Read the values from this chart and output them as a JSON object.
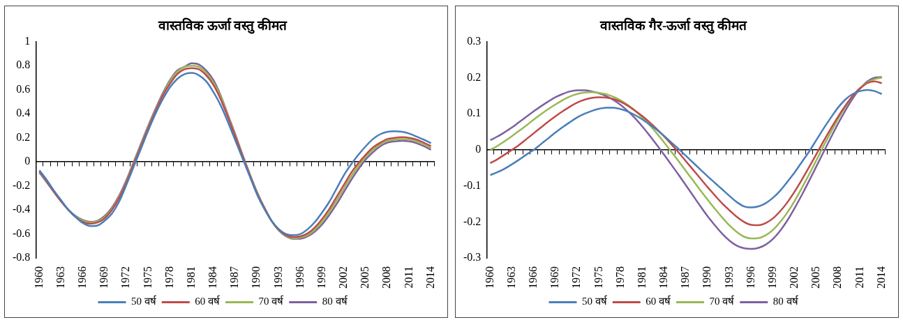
{
  "chart_data": [
    {
      "type": "line",
      "title": "वास्तविक ऊर्जा वस्तु कीमत",
      "categories": [
        "1960",
        null,
        null,
        "1963",
        null,
        null,
        "1966",
        null,
        null,
        "1969",
        null,
        null,
        "1972",
        null,
        null,
        "1975",
        null,
        null,
        "1978",
        null,
        null,
        "1981",
        null,
        null,
        "1984",
        null,
        null,
        "1987",
        null,
        null,
        "1990",
        null,
        null,
        "1993",
        null,
        null,
        "1996",
        null,
        null,
        "1999",
        null,
        null,
        "2002",
        null,
        null,
        "2005",
        null,
        null,
        "2008",
        null,
        null,
        "2011",
        null,
        null,
        "2014"
      ],
      "series": [
        {
          "name": "50 वर्ष",
          "color": "#4a7ebb",
          "values": [
            -0.07,
            -0.15,
            -0.24,
            -0.32,
            -0.4,
            -0.46,
            -0.51,
            -0.535,
            -0.53,
            -0.49,
            -0.43,
            -0.33,
            -0.19,
            -0.04,
            0.11,
            0.26,
            0.4,
            0.52,
            0.62,
            0.69,
            0.73,
            0.74,
            0.72,
            0.67,
            0.58,
            0.47,
            0.33,
            0.18,
            0.03,
            -0.12,
            -0.27,
            -0.39,
            -0.49,
            -0.56,
            -0.6,
            -0.61,
            -0.6,
            -0.56,
            -0.5,
            -0.42,
            -0.33,
            -0.22,
            -0.11,
            -0.02,
            0.06,
            0.13,
            0.19,
            0.23,
            0.25,
            0.255,
            0.25,
            0.235,
            0.21,
            0.185,
            0.155
          ]
        },
        {
          "name": "60 वर्ष",
          "color": "#be4b48",
          "values": [
            -0.08,
            -0.16,
            -0.25,
            -0.33,
            -0.4,
            -0.46,
            -0.5,
            -0.515,
            -0.505,
            -0.47,
            -0.4,
            -0.3,
            -0.17,
            -0.02,
            0.13,
            0.28,
            0.42,
            0.55,
            0.65,
            0.73,
            0.77,
            0.78,
            0.77,
            0.72,
            0.64,
            0.52,
            0.37,
            0.21,
            0.05,
            -0.11,
            -0.26,
            -0.38,
            -0.49,
            -0.565,
            -0.61,
            -0.625,
            -0.62,
            -0.595,
            -0.545,
            -0.475,
            -0.39,
            -0.29,
            -0.19,
            -0.09,
            -0.01,
            0.06,
            0.12,
            0.16,
            0.19,
            0.2,
            0.205,
            0.2,
            0.185,
            0.16,
            0.13
          ]
        },
        {
          "name": "70 वर्ष",
          "color": "#98b954",
          "values": [
            -0.085,
            -0.165,
            -0.25,
            -0.33,
            -0.4,
            -0.455,
            -0.49,
            -0.505,
            -0.495,
            -0.46,
            -0.39,
            -0.29,
            -0.16,
            -0.01,
            0.14,
            0.29,
            0.43,
            0.56,
            0.67,
            0.75,
            0.79,
            0.8,
            0.79,
            0.74,
            0.66,
            0.54,
            0.38,
            0.22,
            0.055,
            -0.105,
            -0.255,
            -0.38,
            -0.49,
            -0.57,
            -0.615,
            -0.635,
            -0.63,
            -0.61,
            -0.565,
            -0.5,
            -0.415,
            -0.32,
            -0.22,
            -0.12,
            -0.035,
            0.04,
            0.1,
            0.145,
            0.175,
            0.185,
            0.19,
            0.185,
            0.17,
            0.145,
            0.115
          ]
        },
        {
          "name": "80 वर्ष",
          "color": "#7d60a0",
          "values": [
            -0.09,
            -0.17,
            -0.25,
            -0.33,
            -0.4,
            -0.45,
            -0.485,
            -0.5,
            -0.49,
            -0.45,
            -0.38,
            -0.28,
            -0.15,
            0.0,
            0.15,
            0.3,
            0.44,
            0.57,
            0.68,
            0.76,
            0.79,
            0.82,
            0.81,
            0.76,
            0.68,
            0.55,
            0.39,
            0.23,
            0.06,
            -0.1,
            -0.25,
            -0.38,
            -0.49,
            -0.57,
            -0.62,
            -0.64,
            -0.64,
            -0.62,
            -0.58,
            -0.52,
            -0.44,
            -0.35,
            -0.25,
            -0.15,
            -0.06,
            0.02,
            0.08,
            0.13,
            0.16,
            0.17,
            0.175,
            0.17,
            0.155,
            0.13,
            0.1
          ]
        }
      ],
      "ylim": [
        -0.8,
        1
      ],
      "yticks": [
        -0.8,
        -0.6,
        -0.4,
        -0.2,
        0,
        0.2,
        0.4,
        0.6,
        0.8,
        1
      ],
      "legend": "bottom",
      "marker": "none",
      "line_style": "solid"
    },
    {
      "type": "line",
      "title": "वास्तविक गैर-ऊर्जा वस्तु कीमत",
      "categories": [
        "1960",
        null,
        null,
        "1963",
        null,
        null,
        "1966",
        null,
        null,
        "1969",
        null,
        null,
        "1972",
        null,
        null,
        "1975",
        null,
        null,
        "1978",
        null,
        null,
        "1981",
        null,
        null,
        "1984",
        null,
        null,
        "1987",
        null,
        null,
        "1990",
        null,
        null,
        "1993",
        null,
        null,
        "1996",
        null,
        null,
        "1999",
        null,
        null,
        "2002",
        null,
        null,
        "2005",
        null,
        null,
        "2008",
        null,
        null,
        "2011",
        null,
        null,
        "2014"
      ],
      "series": [
        {
          "name": "50 वर्ष",
          "color": "#4a7ebb",
          "values": [
            -0.07,
            -0.062,
            -0.052,
            -0.04,
            -0.027,
            -0.013,
            0.0,
            0.016,
            0.032,
            0.048,
            0.063,
            0.077,
            0.09,
            0.1,
            0.108,
            0.114,
            0.117,
            0.117,
            0.113,
            0.106,
            0.096,
            0.084,
            0.07,
            0.055,
            0.038,
            0.02,
            0.002,
            -0.017,
            -0.036,
            -0.055,
            -0.074,
            -0.092,
            -0.11,
            -0.128,
            -0.145,
            -0.157,
            -0.16,
            -0.157,
            -0.148,
            -0.133,
            -0.113,
            -0.088,
            -0.062,
            -0.033,
            -0.004,
            0.028,
            0.06,
            0.09,
            0.118,
            0.14,
            0.155,
            0.163,
            0.166,
            0.163,
            0.155
          ]
        },
        {
          "name": "60 वर्ष",
          "color": "#be4b48",
          "values": [
            -0.037,
            -0.026,
            -0.013,
            0.0,
            0.014,
            0.03,
            0.046,
            0.062,
            0.078,
            0.093,
            0.107,
            0.12,
            0.131,
            0.139,
            0.144,
            0.146,
            0.145,
            0.141,
            0.133,
            0.122,
            0.108,
            0.093,
            0.076,
            0.057,
            0.037,
            0.015,
            -0.008,
            -0.032,
            -0.056,
            -0.08,
            -0.104,
            -0.127,
            -0.149,
            -0.168,
            -0.186,
            -0.2,
            -0.208,
            -0.209,
            -0.203,
            -0.19,
            -0.17,
            -0.145,
            -0.115,
            -0.082,
            -0.047,
            -0.011,
            0.025,
            0.06,
            0.093,
            0.123,
            0.15,
            0.17,
            0.185,
            0.19,
            0.185
          ]
        },
        {
          "name": "70 वर्ष",
          "color": "#98b954",
          "values": [
            0.0,
            0.011,
            0.024,
            0.038,
            0.053,
            0.068,
            0.084,
            0.099,
            0.113,
            0.126,
            0.138,
            0.148,
            0.155,
            0.159,
            0.16,
            0.158,
            0.154,
            0.147,
            0.137,
            0.124,
            0.108,
            0.089,
            0.068,
            0.045,
            0.02,
            -0.006,
            -0.032,
            -0.059,
            -0.086,
            -0.113,
            -0.139,
            -0.164,
            -0.188,
            -0.21,
            -0.228,
            -0.241,
            -0.246,
            -0.245,
            -0.237,
            -0.222,
            -0.2,
            -0.173,
            -0.141,
            -0.105,
            -0.067,
            -0.028,
            0.012,
            0.05,
            0.087,
            0.12,
            0.15,
            0.172,
            0.187,
            0.196,
            0.2
          ]
        },
        {
          "name": "80 वर्ष",
          "color": "#7d60a0",
          "values": [
            0.027,
            0.037,
            0.049,
            0.062,
            0.077,
            0.092,
            0.107,
            0.121,
            0.134,
            0.146,
            0.155,
            0.162,
            0.165,
            0.165,
            0.162,
            0.157,
            0.149,
            0.138,
            0.124,
            0.107,
            0.087,
            0.064,
            0.039,
            0.013,
            -0.014,
            -0.042,
            -0.07,
            -0.099,
            -0.128,
            -0.157,
            -0.185,
            -0.21,
            -0.233,
            -0.252,
            -0.266,
            -0.273,
            -0.275,
            -0.272,
            -0.263,
            -0.247,
            -0.224,
            -0.195,
            -0.161,
            -0.124,
            -0.085,
            -0.045,
            -0.005,
            0.035,
            0.074,
            0.11,
            0.143,
            0.17,
            0.19,
            0.2,
            0.202
          ]
        }
      ],
      "ylim": [
        -0.3,
        0.3
      ],
      "yticks": [
        -0.3,
        -0.2,
        -0.1,
        0,
        0.1,
        0.2,
        0.3
      ],
      "legend": "bottom",
      "marker": "none",
      "line_style": "solid"
    }
  ]
}
